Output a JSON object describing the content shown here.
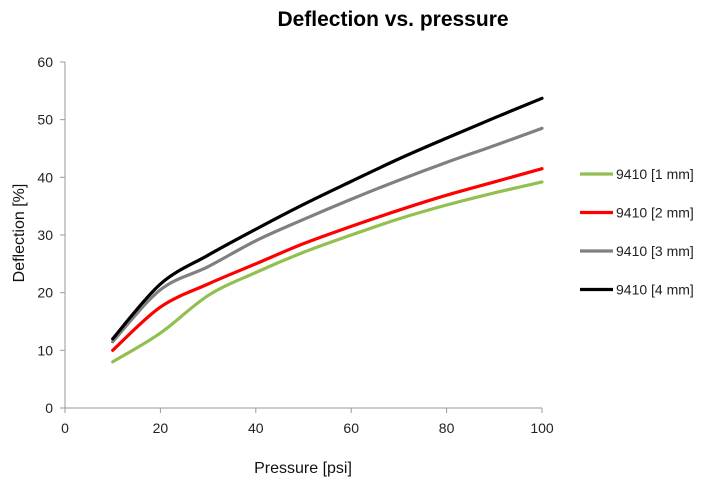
{
  "chart_data": {
    "type": "line",
    "title": "Deflection vs. pressure",
    "xlabel": "Pressure [psi]",
    "ylabel": "Deflection [%]",
    "xlim": [
      0,
      100
    ],
    "ylim": [
      0,
      60
    ],
    "xticks": [
      0,
      20,
      40,
      60,
      80,
      100
    ],
    "yticks": [
      0,
      10,
      20,
      30,
      40,
      50,
      60
    ],
    "grid": false,
    "legend_position": "right",
    "x": [
      10,
      20,
      30,
      40,
      50,
      60,
      70,
      80,
      90,
      100
    ],
    "series": [
      {
        "name": "9410 [1 mm]",
        "color": "#92c050",
        "values": [
          8,
          13,
          19.5,
          23.5,
          27,
          30,
          32.8,
          35.2,
          37.3,
          39.2
        ]
      },
      {
        "name": "9410 [2 mm]",
        "color": "#ff0000",
        "values": [
          10,
          17.5,
          21.5,
          25,
          28.5,
          31.5,
          34.3,
          36.9,
          39.2,
          41.5
        ]
      },
      {
        "name": "9410 [3 mm]",
        "color": "#808080",
        "values": [
          11.5,
          20.5,
          24.5,
          29,
          32.7,
          36.2,
          39.5,
          42.6,
          45.5,
          48.5
        ]
      },
      {
        "name": "9410 [4 mm]",
        "color": "#000000",
        "values": [
          12,
          21.5,
          26.5,
          31,
          35.3,
          39.3,
          43.2,
          46.8,
          50.3,
          53.7
        ]
      }
    ]
  }
}
